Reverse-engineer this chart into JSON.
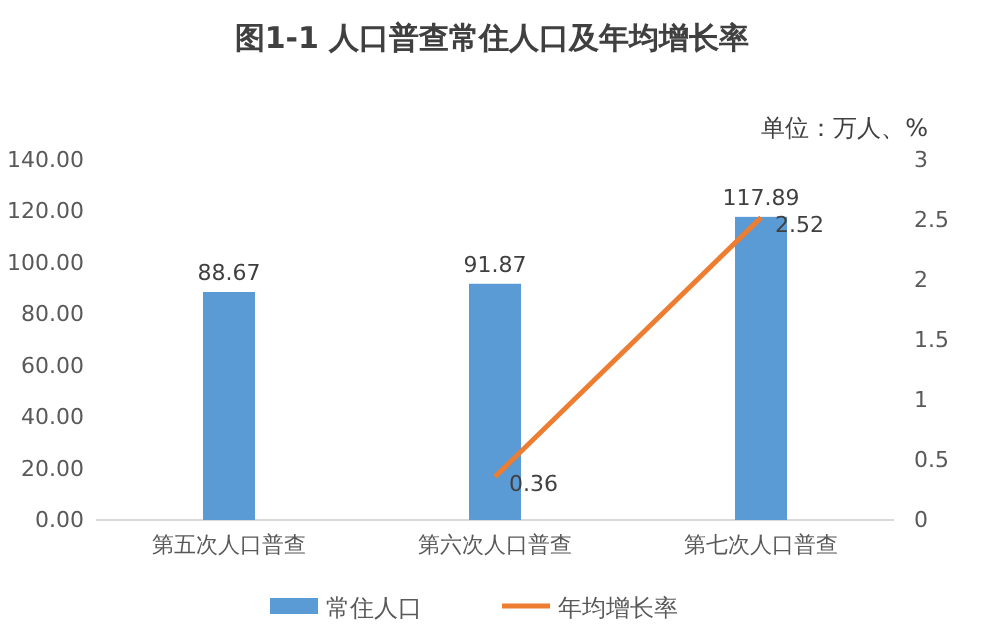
{
  "chart_data": {
    "type": "bar",
    "title": "图1-1 人口普查常住人口及年均增长率",
    "annotations": [
      "单位：万人、%"
    ],
    "categories": [
      "第五次人口普查",
      "第六次人口普查",
      "第七次人口普查"
    ],
    "series": [
      {
        "name": "常住人口",
        "color": "#5b9bd5",
        "values": [
          88.67,
          91.87,
          117.89
        ]
      },
      {
        "name": "年均增长率",
        "type": "line",
        "axis": "y2",
        "color": "#ed7d31",
        "values": [
          null,
          0.36,
          2.52
        ]
      }
    ],
    "ylim": [
      0,
      140
    ],
    "yticks": [
      {
        "value": 0,
        "label": "0.00"
      },
      {
        "value": 20,
        "label": "20.00"
      },
      {
        "value": 40,
        "label": "40.00"
      },
      {
        "value": 60,
        "label": "60.00"
      },
      {
        "value": 80,
        "label": "80.00"
      },
      {
        "value": 100,
        "label": "100.00"
      },
      {
        "value": 120,
        "label": "120.00"
      },
      {
        "value": 140,
        "label": "140.00"
      }
    ],
    "y2lim": [
      0,
      3
    ],
    "y2ticks": [
      0,
      0.5,
      1,
      1.5,
      2,
      2.5,
      3
    ],
    "data_labels": true,
    "legend": "bottom",
    "marker": "none",
    "line_style": "solid"
  }
}
